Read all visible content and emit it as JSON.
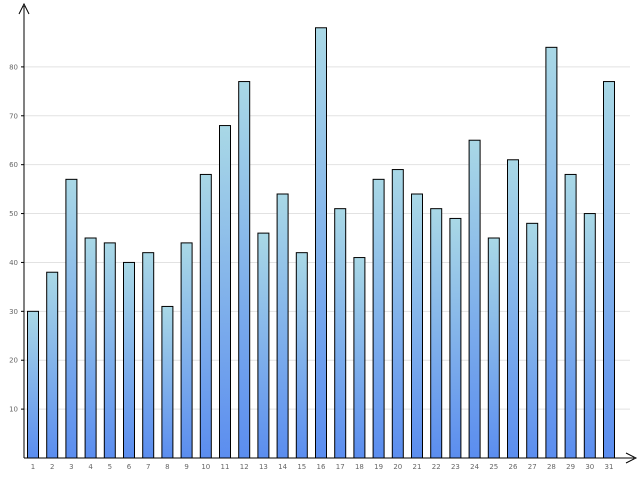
{
  "chart_data": {
    "type": "bar",
    "title": "",
    "xlabel": "",
    "ylabel": "",
    "categories": [
      "1",
      "2",
      "3",
      "4",
      "5",
      "6",
      "7",
      "8",
      "9",
      "10",
      "11",
      "12",
      "13",
      "14",
      "15",
      "16",
      "17",
      "18",
      "19",
      "20",
      "21",
      "22",
      "23",
      "24",
      "25",
      "26",
      "27",
      "28",
      "29",
      "30",
      "31"
    ],
    "values": [
      30,
      38,
      57,
      45,
      44,
      40,
      42,
      31,
      44,
      58,
      68,
      77,
      46,
      54,
      42,
      88,
      51,
      41,
      57,
      59,
      54,
      51,
      49,
      65,
      45,
      61,
      48,
      84,
      58,
      50,
      77
    ],
    "ylim": [
      0,
      90
    ],
    "yticks": [
      10,
      20,
      30,
      40,
      50,
      60,
      70,
      80
    ],
    "grid": true,
    "legend": "none",
    "colors": {
      "bar_top": "#a9d8e6",
      "bar_bottom": "#5b8def",
      "bar_stroke": "#000000",
      "grid": "#e2e2e2",
      "axis": "#000000",
      "tick_text": "#666666"
    }
  }
}
